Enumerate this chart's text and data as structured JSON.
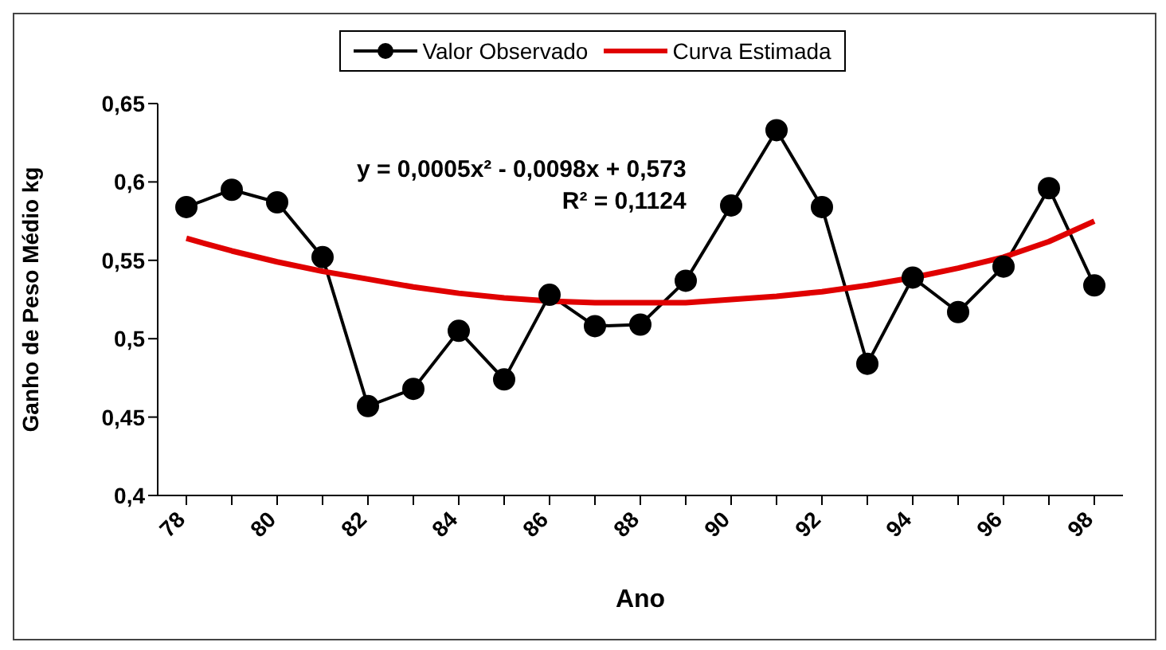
{
  "chart_data": {
    "type": "line",
    "xlabel": "Ano",
    "ylabel": "Ganho de Peso Médio kg",
    "categories": [
      "78",
      null,
      "80",
      null,
      "82",
      null,
      "84",
      null,
      "86",
      null,
      "88",
      null,
      "90",
      null,
      "92",
      null,
      "94",
      null,
      "96",
      null,
      "98"
    ],
    "series": [
      {
        "name": "Valor Observado",
        "color": "#000000",
        "marker": "circle",
        "values": [
          0.584,
          0.595,
          0.587,
          0.552,
          0.457,
          0.468,
          0.505,
          0.474,
          0.528,
          0.508,
          0.509,
          0.537,
          0.585,
          0.633,
          0.584,
          0.484,
          0.539,
          0.517,
          0.546,
          0.596,
          0.534
        ]
      },
      {
        "name": "Curva Estimada",
        "color": "#e00000",
        "marker": "none",
        "values": [
          0.564,
          0.556,
          0.549,
          0.543,
          0.538,
          0.533,
          0.529,
          0.526,
          0.524,
          0.523,
          0.523,
          0.523,
          0.525,
          0.527,
          0.53,
          0.534,
          0.539,
          0.545,
          0.552,
          0.562,
          0.575
        ]
      }
    ],
    "ylim": [
      0.4,
      0.65
    ],
    "yticks": [
      {
        "value": 0.4,
        "label": "0,4"
      },
      {
        "value": 0.45,
        "label": "0,45"
      },
      {
        "value": 0.5,
        "label": "0,5"
      },
      {
        "value": 0.55,
        "label": "0,55"
      },
      {
        "value": 0.6,
        "label": "0,6"
      },
      {
        "value": 0.65,
        "label": "0,65"
      }
    ],
    "annotations": [
      "y = 0,0005x² - 0,0098x + 0,573",
      "R² = 0,1124"
    ],
    "legend": "top"
  }
}
